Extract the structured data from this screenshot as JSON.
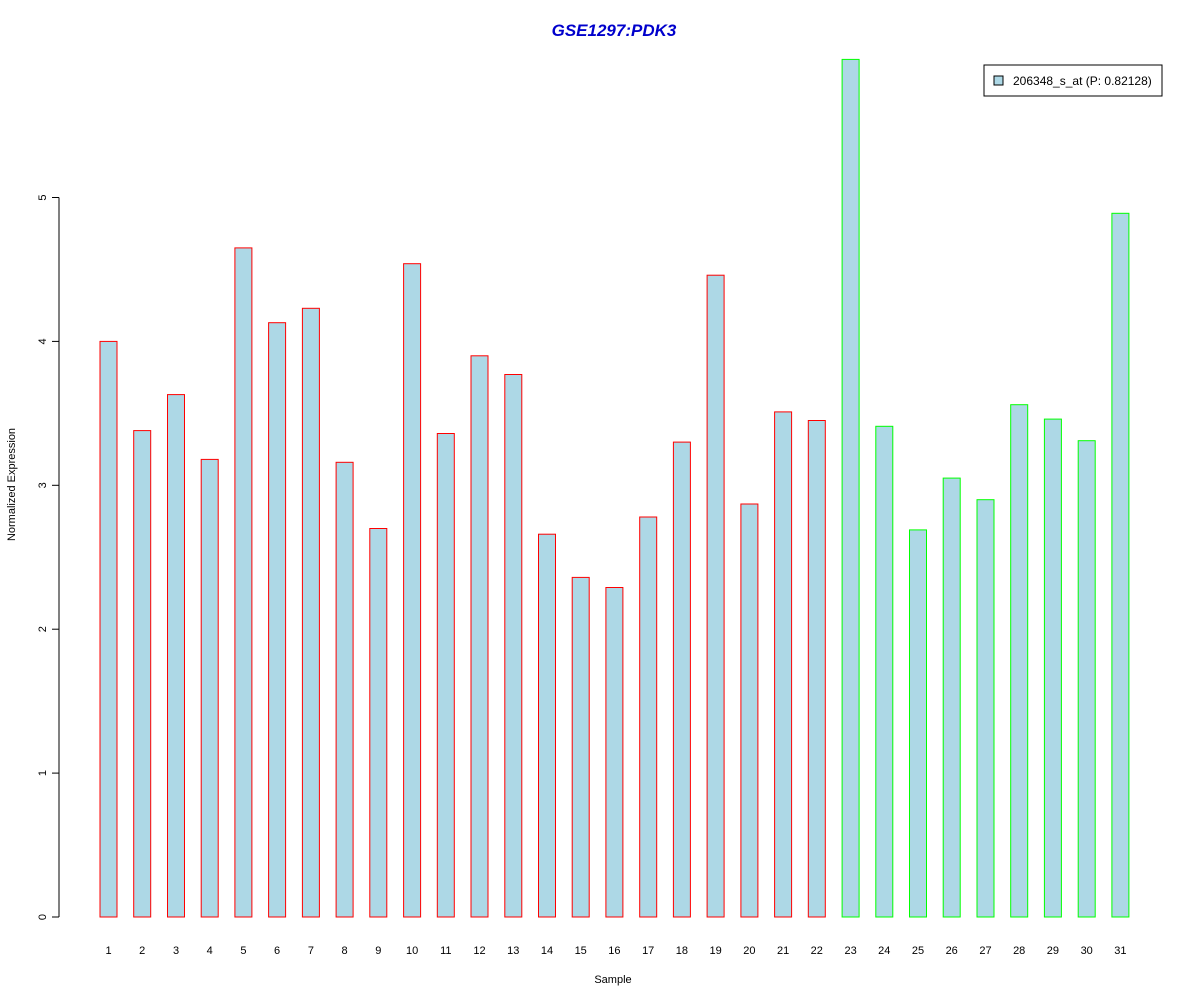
{
  "chart_data": {
    "type": "bar",
    "title": "GSE1297:PDK3",
    "xlabel": "Sample",
    "ylabel": "Normalized Expression",
    "ylim": [
      0,
      5.95
    ],
    "yticks": [
      0,
      1,
      2,
      3,
      4,
      5
    ],
    "grid": false,
    "legend_position": "top-right",
    "categories": [
      "1",
      "2",
      "3",
      "4",
      "5",
      "6",
      "7",
      "8",
      "9",
      "10",
      "11",
      "12",
      "13",
      "14",
      "15",
      "16",
      "17",
      "18",
      "19",
      "20",
      "21",
      "22",
      "23",
      "24",
      "25",
      "26",
      "27",
      "28",
      "29",
      "30",
      "31"
    ],
    "series": [
      {
        "name": "206348_s_at (P: 0.82128)",
        "values": [
          4.0,
          3.38,
          3.63,
          3.18,
          4.65,
          4.13,
          4.23,
          3.16,
          2.7,
          4.54,
          3.36,
          3.9,
          3.77,
          2.66,
          2.36,
          2.29,
          2.78,
          3.3,
          4.46,
          2.87,
          3.51,
          3.45,
          5.96,
          3.41,
          2.69,
          3.05,
          2.9,
          3.56,
          3.46,
          3.31,
          4.89
        ],
        "fill": "#add8e6"
      }
    ],
    "groups": [
      {
        "categories_from": 1,
        "categories_to": 22,
        "border_color": "#ff0000"
      },
      {
        "categories_from": 23,
        "categories_to": 31,
        "border_color": "#00ff00"
      }
    ],
    "colors": {
      "title": "#0000cc",
      "bar_fill": "#add8e6",
      "axis": "#000000"
    }
  }
}
